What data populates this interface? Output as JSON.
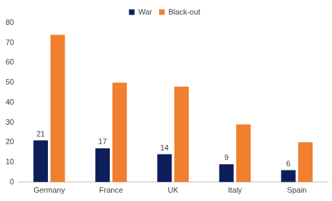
{
  "chart_data": {
    "type": "bar",
    "categories": [
      "Germany",
      "France",
      "UK",
      "Italy",
      "Spain"
    ],
    "series": [
      {
        "name": "War",
        "color": "#0d1e5a",
        "values": [
          21,
          17,
          14,
          9,
          6
        ],
        "data_labels": true
      },
      {
        "name": "Black-out",
        "color": "#f0802f",
        "values": [
          74,
          50,
          48,
          29,
          20
        ]
      }
    ],
    "ylim": [
      0,
      80
    ],
    "yticks": [
      0,
      10,
      20,
      30,
      40,
      50,
      60,
      70,
      80
    ],
    "grid": false,
    "legend": "top"
  }
}
